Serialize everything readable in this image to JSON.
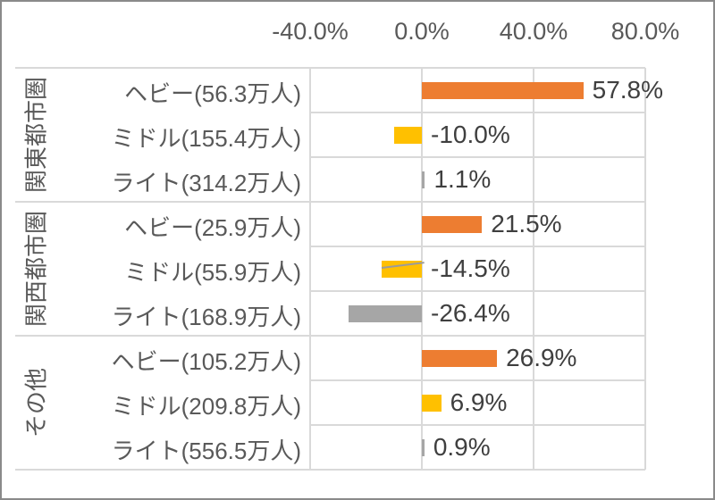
{
  "chart_data": {
    "type": "bar",
    "orientation": "horizontal",
    "title": "",
    "x_axis": {
      "min": -40,
      "max": 80,
      "unit": "%",
      "ticks": [
        -40,
        0,
        40,
        80
      ],
      "tick_labels": [
        "-40.0%",
        "0.0%",
        "40.0%",
        "80.0%"
      ],
      "grid": true,
      "position": "top"
    },
    "colors": {
      "heavy": "#ED7D31",
      "middle": "#FFC000",
      "light": "#A6A6A6",
      "gridline": "#D9D9D9",
      "axis_text": "#595959",
      "value_text": "#3F3F3F"
    },
    "groups": [
      {
        "label": "関東都市圏",
        "row_count": 3
      },
      {
        "label": "関西都市圏",
        "row_count": 3
      },
      {
        "label": "その他",
        "row_count": 3
      }
    ],
    "rows": [
      {
        "group": "関東都市圏",
        "segment": "ヘビー",
        "label": "ヘビー(56.3万人)",
        "population_10k": 56.3,
        "value": 57.8,
        "value_label": "57.8%",
        "color": "#ED7D31",
        "leader_line": false
      },
      {
        "group": "関東都市圏",
        "segment": "ミドル",
        "label": "ミドル(155.4万人)",
        "population_10k": 155.4,
        "value": -10.0,
        "value_label": "-10.0%",
        "color": "#FFC000",
        "leader_line": false
      },
      {
        "group": "関東都市圏",
        "segment": "ライト",
        "label": "ライト(314.2万人)",
        "population_10k": 314.2,
        "value": 1.1,
        "value_label": "1.1%",
        "color": "#A6A6A6",
        "leader_line": false
      },
      {
        "group": "関西都市圏",
        "segment": "ヘビー",
        "label": "ヘビー(25.9万人)",
        "population_10k": 25.9,
        "value": 21.5,
        "value_label": "21.5%",
        "color": "#ED7D31",
        "leader_line": false
      },
      {
        "group": "関西都市圏",
        "segment": "ミドル",
        "label": "ミドル(55.9万人)",
        "population_10k": 55.9,
        "value": -14.5,
        "value_label": "-14.5%",
        "color": "#FFC000",
        "leader_line": true
      },
      {
        "group": "関西都市圏",
        "segment": "ライト",
        "label": "ライト(168.9万人)",
        "population_10k": 168.9,
        "value": -26.4,
        "value_label": "-26.4%",
        "color": "#A6A6A6",
        "leader_line": false
      },
      {
        "group": "その他",
        "segment": "ヘビー",
        "label": "ヘビー(105.2万人)",
        "population_10k": 105.2,
        "value": 26.9,
        "value_label": "26.9%",
        "color": "#ED7D31",
        "leader_line": false
      },
      {
        "group": "その他",
        "segment": "ミドル",
        "label": "ミドル(209.8万人)",
        "population_10k": 209.8,
        "value": 6.9,
        "value_label": "6.9%",
        "color": "#FFC000",
        "leader_line": false
      },
      {
        "group": "その他",
        "segment": "ライト",
        "label": "ライト(556.5万人)",
        "population_10k": 556.5,
        "value": 0.9,
        "value_label": "0.9%",
        "color": "#A6A6A6",
        "leader_line": false
      }
    ]
  }
}
